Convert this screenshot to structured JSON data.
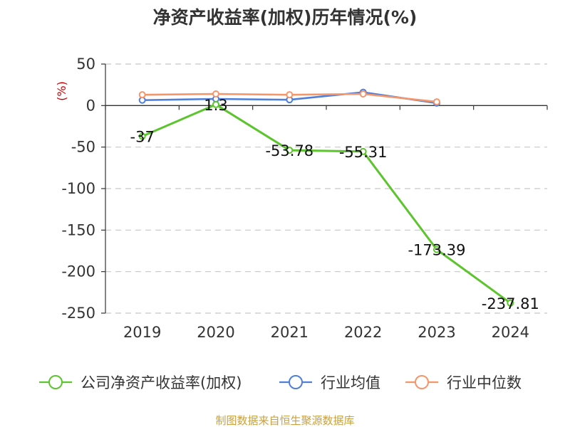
{
  "chart_data": {
    "type": "line",
    "title": "净资产收益率(加权)历年情况(%)",
    "ylabel": "(%)",
    "categories": [
      "2019",
      "2020",
      "2021",
      "2022",
      "2023",
      "2024"
    ],
    "ylim": [
      -250,
      50
    ],
    "yticks": [
      50,
      0,
      -50,
      -100,
      -150,
      -200,
      -250
    ],
    "grid": true,
    "legend_position": "bottom",
    "series": [
      {
        "name": "公司净资产收益率(加权)",
        "color": "#5cc42c",
        "values": [
          -37,
          1.3,
          -53.78,
          -55.31,
          -173.39,
          -237.81
        ],
        "labels": [
          "-37",
          "1.3",
          "-53.78",
          "-55.31",
          "-173.39",
          "-237.81"
        ]
      },
      {
        "name": "行业均值",
        "color": "#4f7fd8",
        "values": [
          6.5,
          8.0,
          7.0,
          16.0,
          3.0,
          null
        ]
      },
      {
        "name": "行业中位数",
        "color": "#f5956a",
        "values": [
          13.0,
          14.0,
          13.0,
          14.0,
          4.5,
          null
        ]
      }
    ]
  },
  "source": "制图数据来自恒生聚源数据库"
}
